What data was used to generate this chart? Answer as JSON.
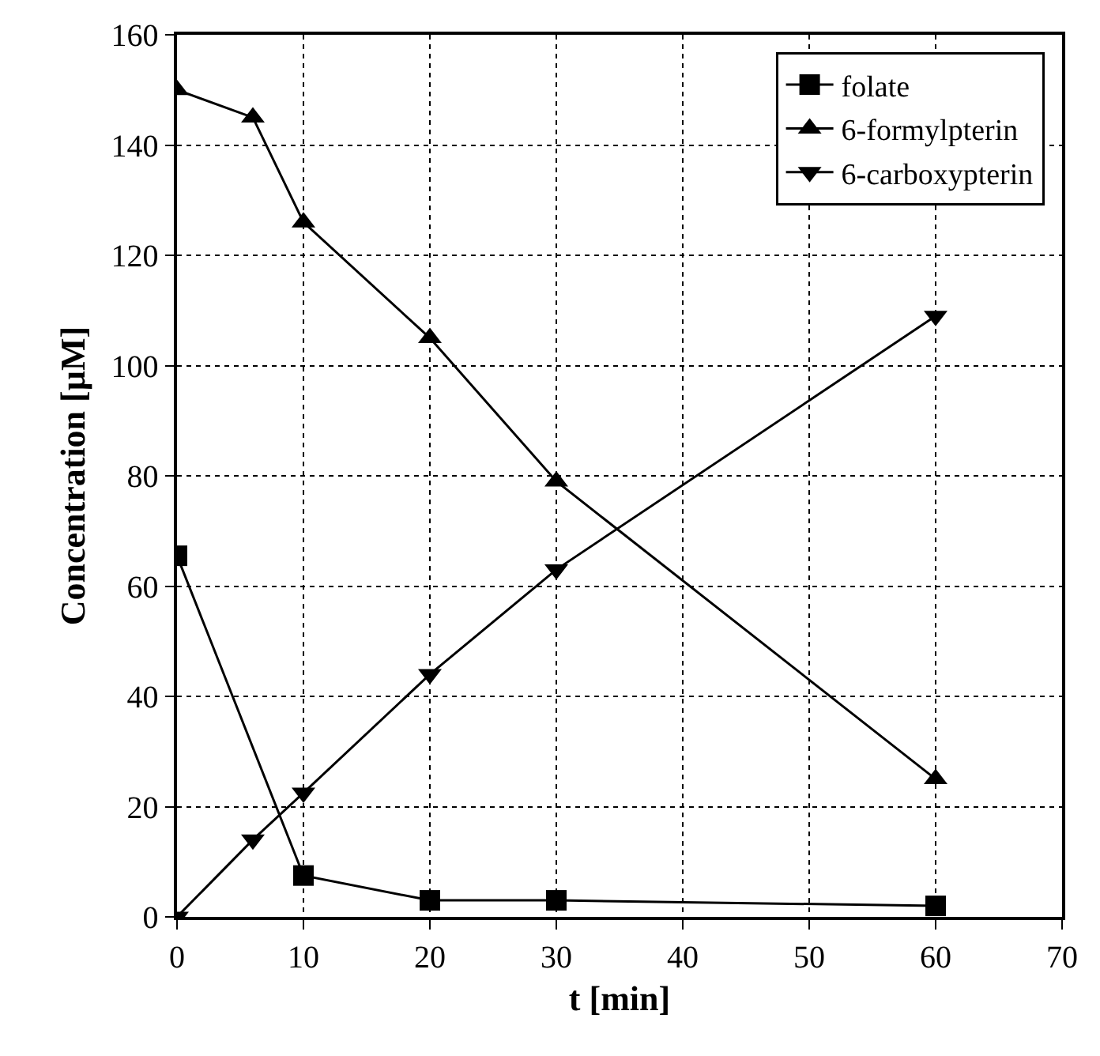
{
  "chart_data": {
    "type": "line",
    "xlabel": "t [min]",
    "ylabel": "Concentration [µM]",
    "xlim": [
      0,
      70
    ],
    "xticks": [
      0,
      10,
      20,
      30,
      40,
      50,
      60,
      70
    ],
    "ylim": [
      0,
      160
    ],
    "yticks": [
      0,
      20,
      40,
      60,
      80,
      100,
      120,
      140,
      160
    ],
    "grid": true,
    "legend": "top right",
    "line_style": "solid",
    "series": [
      {
        "name": "folate",
        "color": "#000000",
        "marker": "square",
        "x": [
          0,
          10,
          20,
          30,
          60
        ],
        "values": [
          65.5,
          7.5,
          3,
          3,
          2
        ]
      },
      {
        "name": "6-formylpterin",
        "color": "#000000",
        "marker": "triangle",
        "x": [
          0,
          6,
          10,
          20,
          30,
          60
        ],
        "values": [
          150,
          145,
          126,
          105,
          79,
          25
        ]
      },
      {
        "name": "6-carboxypterin",
        "color": "#000000",
        "marker": "triangle-down",
        "x": [
          0,
          6,
          10,
          20,
          30,
          60
        ],
        "values": [
          0,
          14,
          22.5,
          44,
          63,
          109
        ]
      }
    ]
  }
}
